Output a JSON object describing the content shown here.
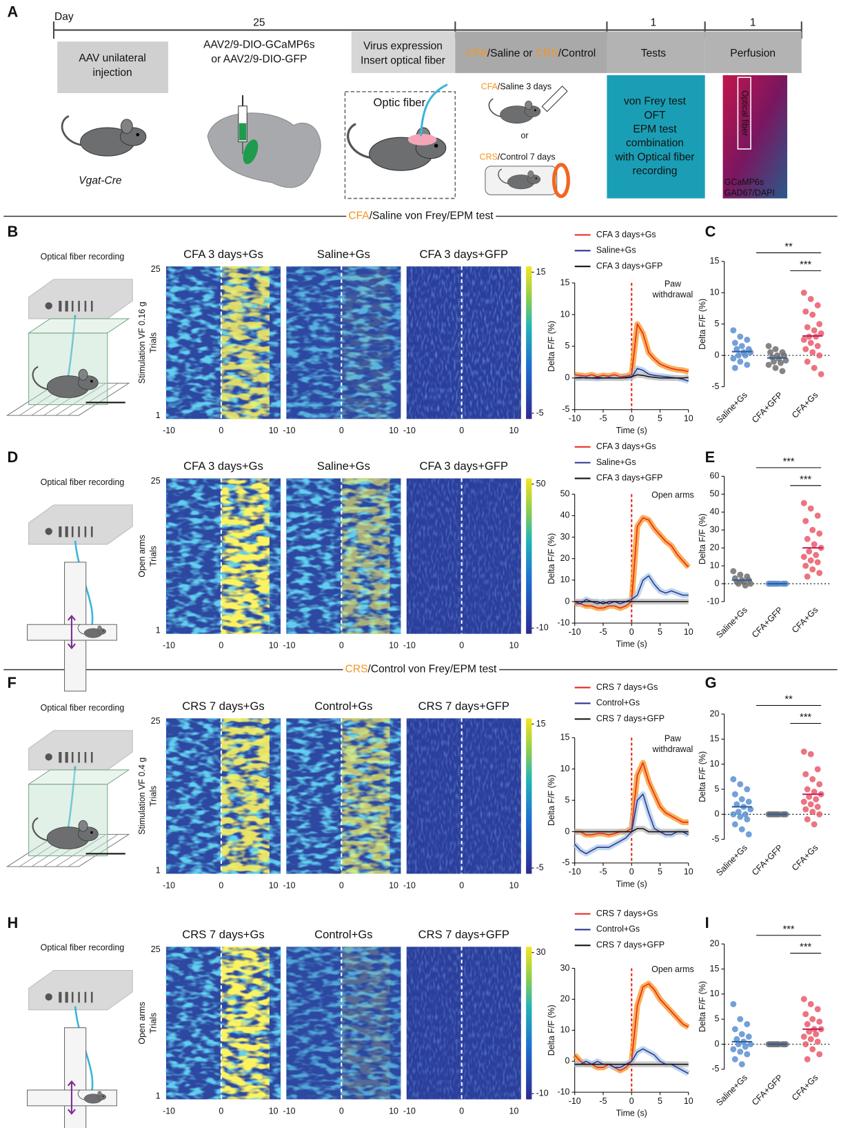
{
  "panel_a": {
    "label": "A",
    "axis_label": "Day",
    "durations": [
      25,
      1,
      1
    ],
    "injection": [
      "AAV unilateral",
      "injection"
    ],
    "virus": [
      "AAV2/9-DIO-GCaMP6s",
      "or AAV2/9-DIO-GFP"
    ],
    "expression": [
      "Virus expression",
      "Insert optical fiber"
    ],
    "model": [
      {
        "text": "CFA",
        "color": "#f7941d"
      },
      {
        "text": "/Saline or "
      },
      {
        "text": "CRS",
        "color": "#f7941d"
      },
      {
        "text": "/Control"
      }
    ],
    "tests": "Tests",
    "perfusion": "Perfusion",
    "mouse_line": "Vgat-Cre",
    "optic_fiber": "Optic fiber",
    "cfa_treatment": [
      {
        "text": "CFA",
        "color": "#f7941d"
      },
      {
        "text": "/Saline  3 days"
      }
    ],
    "or": "or",
    "crs_treatment": [
      {
        "text": "CRS",
        "color": "#f7941d"
      },
      {
        "text": "/Control  7 days"
      }
    ],
    "test_list": [
      "von Frey test",
      "OFT",
      "EPM test",
      "combination",
      "with Optical fiber",
      "recording"
    ],
    "image_labels": {
      "fiber": "Optical fiber",
      "stain1": "GCaMP6s",
      "stain2": "GAD67/DAPI"
    }
  },
  "sections": [
    [
      {
        "text": "CFA",
        "color": "#f7941d"
      },
      {
        "text": "/Saline von Frey/EPM test"
      }
    ],
    [
      {
        "text": "CRS",
        "color": "#f7941d"
      },
      {
        "text": "/Control von Frey/EPM test"
      }
    ]
  ],
  "rows": [
    {
      "label": "B",
      "recording": "Optical fiber recording",
      "ylabel": "Stimulation VF 0.16 g",
      "trials_label": "Trials",
      "trial_ticks": [
        1,
        25
      ],
      "heatmaps": [
        {
          "title": "CFA 3 days+Gs",
          "color": "#f7941d"
        },
        {
          "title": "Saline+Gs",
          "color": "#2e3192"
        },
        {
          "title": "CFA 3 days+GFP",
          "color": "#111111"
        }
      ],
      "heat_xticks": [
        -10,
        0,
        10
      ],
      "event_x": 0,
      "colorbar_ticks": [
        -5,
        15
      ]
    },
    {
      "label": "D",
      "recording": "Optical fiber recording",
      "ylabel": "Open arms",
      "trials_label": "Trials",
      "trial_ticks": [
        1,
        25
      ],
      "heatmaps": [
        {
          "title": "CFA 3 days+Gs",
          "color": "#f7941d"
        },
        {
          "title": "Saline+Gs",
          "color": "#2e3192"
        },
        {
          "title": "CFA 3 days+GFP",
          "color": "#111111"
        }
      ],
      "heat_xticks": [
        -10,
        0,
        10
      ],
      "event_x": 0,
      "colorbar_ticks": [
        -10,
        50
      ]
    },
    {
      "label": "F",
      "recording": "Optical fiber recording",
      "ylabel": "Stimulation VF 0.4 g",
      "trials_label": "Trials",
      "trial_ticks": [
        1,
        25
      ],
      "heatmaps": [
        {
          "title": "CRS 7 days+Gs",
          "color": "#f7941d"
        },
        {
          "title": "Control+Gs",
          "color": "#2e3192"
        },
        {
          "title": "CRS 7 days+GFP",
          "color": "#111111"
        }
      ],
      "heat_xticks": [
        -10,
        0,
        10
      ],
      "event_x": 0,
      "colorbar_ticks": [
        -5,
        15
      ]
    },
    {
      "label": "H",
      "recording": "Optical fiber recording",
      "ylabel": "Open arms",
      "trials_label": "Trials",
      "trial_ticks": [
        1,
        25
      ],
      "heatmaps": [
        {
          "title": "CRS 7 days+Gs",
          "color": "#f7941d"
        },
        {
          "title": "Control+Gs",
          "color": "#2e3192"
        },
        {
          "title": "CRS 7 days+GFP",
          "color": "#111111"
        }
      ],
      "heat_xticks": [
        -10,
        0,
        10
      ],
      "event_x": 0,
      "colorbar_ticks": [
        -10,
        30
      ]
    }
  ],
  "chart_data": [
    {
      "type": "line",
      "x": [
        -10,
        -9,
        -8,
        -7,
        -6,
        -5,
        -4,
        -3,
        -2,
        -1,
        0,
        1,
        2,
        3,
        4,
        5,
        6,
        7,
        8,
        9,
        10
      ],
      "xlim": [
        -10,
        10
      ],
      "xticks": [
        -10,
        -5,
        0,
        5,
        10
      ],
      "ylim": [
        -5,
        15
      ],
      "yticks": [
        -5,
        0,
        5,
        10,
        15
      ],
      "xlabel": "Time (s)",
      "ylabel": "Delta F/F (%)",
      "event_x": 0,
      "event_color": "#e8251f",
      "annotation": [
        "Paw",
        "withdrawal"
      ],
      "series": [
        {
          "name": "CFA 3 days+Gs",
          "color": "#e8251f",
          "band_color": "#f7941d",
          "values": [
            0.5,
            0.4,
            0.3,
            0.5,
            0.2,
            0.4,
            0.3,
            0.5,
            0.2,
            0.3,
            0.5,
            8.5,
            7,
            4,
            3,
            2.2,
            1.8,
            1.5,
            1.3,
            1.2,
            1
          ]
        },
        {
          "name": "Saline+Gs",
          "color": "#2e3192",
          "band_color": "#a9cbe8",
          "values": [
            0,
            0,
            0.1,
            0,
            -0.1,
            0,
            0.1,
            0,
            0,
            0,
            0.1,
            1.5,
            1.2,
            0.6,
            0.4,
            0.3,
            0.2,
            0.1,
            0,
            -0.2,
            -0.5
          ]
        },
        {
          "name": "CFA 3 days+GFP",
          "color": "#111111",
          "band_color": "#bbbbbb",
          "values": [
            0,
            0.1,
            0,
            0,
            0.1,
            0,
            0,
            0,
            0,
            0.1,
            0.2,
            0.5,
            0.4,
            0.2,
            0.1,
            0,
            0,
            0,
            0,
            0,
            0.1
          ]
        }
      ]
    },
    {
      "type": "scatter",
      "label": "C",
      "ylabel": "Delta F/F (%)",
      "categories": [
        "Saline+Gs",
        "CFA+GFP",
        "CFA+Gs"
      ],
      "colors": [
        "#5b8fd1",
        "#707070",
        "#ea5a6a"
      ],
      "ylim": [
        -5,
        15
      ],
      "yticks": [
        -5,
        0,
        5,
        10,
        15
      ],
      "significance": [
        "**",
        "***"
      ],
      "means": [
        0.6,
        -0.4,
        3.1
      ],
      "values": [
        [
          4,
          3,
          2.5,
          2,
          1.5,
          1,
          1,
          0.5,
          0.5,
          0,
          0,
          -0.5,
          -1,
          -1.5,
          -2
        ],
        [
          1.5,
          1,
          0.5,
          0.5,
          0,
          0,
          -0.3,
          -0.5,
          -0.8,
          -1,
          -1.2,
          -1.5,
          -2,
          -2.5
        ],
        [
          10,
          9,
          8,
          7,
          6.5,
          5,
          4.5,
          4,
          3.5,
          3,
          3,
          2.5,
          2,
          1.5,
          1,
          0.5,
          0,
          -1,
          -2,
          -3
        ]
      ]
    },
    {
      "type": "line",
      "x": [
        -10,
        -9,
        -8,
        -7,
        -6,
        -5,
        -4,
        -3,
        -2,
        -1,
        0,
        1,
        2,
        3,
        4,
        5,
        6,
        7,
        8,
        9,
        10
      ],
      "xlim": [
        -10,
        10
      ],
      "xticks": [
        -10,
        -5,
        0,
        5,
        10
      ],
      "ylim": [
        -10,
        50
      ],
      "yticks": [
        -10,
        0,
        10,
        20,
        30,
        40,
        50
      ],
      "xlabel": "Time (s)",
      "ylabel": "Delta F/F (%)",
      "event_x": 0,
      "event_color": "#e8251f",
      "annotation": [
        "Open arms"
      ],
      "series": [
        {
          "name": "CFA 3 days+Gs",
          "color": "#e8251f",
          "band_color": "#f7941d",
          "values": [
            -1,
            -1,
            -2,
            -2,
            -3,
            -3,
            -2,
            -2,
            -3,
            -2,
            0,
            35,
            39,
            38,
            34,
            31,
            28,
            26,
            22,
            19,
            16
          ]
        },
        {
          "name": "Saline+Gs",
          "color": "#2e3192",
          "band_color": "#a9cbe8",
          "values": [
            0,
            -1,
            1,
            0,
            -1,
            0,
            -1,
            0,
            -1,
            0,
            1,
            3,
            10,
            12,
            8,
            5,
            4,
            5,
            4,
            3,
            3
          ]
        },
        {
          "name": "CFA 3 days+GFP",
          "color": "#111111",
          "band_color": "#bbbbbb",
          "values": [
            0,
            0,
            0,
            0,
            0,
            -1,
            0,
            0,
            0,
            0,
            0,
            0,
            0,
            0,
            0,
            0,
            0,
            0,
            0,
            0,
            0
          ]
        }
      ]
    },
    {
      "type": "scatter",
      "label": "E",
      "ylabel": "Delta F/F (%)",
      "categories": [
        "Saline+Gs",
        "CFA+GFP",
        "CFA+Gs"
      ],
      "colors": [
        "#707070",
        "#5b8fd1",
        "#ea5a6a"
      ],
      "ylim": [
        -10,
        60
      ],
      "yticks": [
        -10,
        0,
        10,
        20,
        30,
        40,
        50,
        60
      ],
      "significance": [
        "***",
        "***"
      ],
      "means": [
        2,
        0,
        20
      ],
      "values": [
        [
          7,
          5,
          4,
          3,
          2,
          2,
          1,
          1,
          0,
          0,
          -1
        ],
        [
          0,
          0,
          0,
          0,
          0,
          0,
          0,
          0,
          0,
          0
        ],
        [
          45,
          42,
          38,
          35,
          30,
          28,
          25,
          22,
          20,
          18,
          16,
          15,
          13,
          12,
          10,
          8,
          6,
          4
        ]
      ]
    },
    {
      "type": "line",
      "x": [
        -10,
        -9,
        -8,
        -7,
        -6,
        -5,
        -4,
        -3,
        -2,
        -1,
        0,
        1,
        2,
        3,
        4,
        5,
        6,
        7,
        8,
        9,
        10
      ],
      "xlim": [
        -10,
        10
      ],
      "xticks": [
        -10,
        -5,
        0,
        5,
        10
      ],
      "ylim": [
        -5,
        15
      ],
      "yticks": [
        -5,
        0,
        5,
        10,
        15
      ],
      "xlabel": "Time (s)",
      "ylabel": "Delta F/F (%)",
      "event_x": 0,
      "event_color": "#e8251f",
      "annotation": [
        "Paw",
        "withdrawal"
      ],
      "series": [
        {
          "name": "CRS 7 days+Gs",
          "color": "#e8251f",
          "band_color": "#f7941d",
          "values": [
            0,
            0,
            -0.5,
            -0.5,
            -0.3,
            -0.3,
            -0.5,
            -0.3,
            0,
            0,
            0.5,
            9,
            11,
            8,
            6,
            4,
            3,
            2.5,
            2,
            1.5,
            1.5
          ]
        },
        {
          "name": "Control+Gs",
          "color": "#2e3192",
          "band_color": "#a9cbe8",
          "values": [
            -2,
            -3,
            -3.5,
            -3,
            -2.5,
            -2.5,
            -2.5,
            -2,
            -1.5,
            -1,
            0,
            5,
            6,
            3,
            0.5,
            0,
            -0.5,
            -0.5,
            0,
            0,
            -0.5
          ]
        },
        {
          "name": "CRS 7 days+GFP",
          "color": "#111111",
          "band_color": "#bbbbbb",
          "values": [
            0,
            0,
            0,
            0,
            0,
            0,
            0,
            0,
            0,
            0,
            0,
            0.5,
            0.5,
            0,
            0,
            0,
            0,
            0,
            0,
            0,
            0
          ]
        }
      ]
    },
    {
      "type": "scatter",
      "label": "G",
      "ylabel": "Delta F/F (%)",
      "categories": [
        "Saline+Gs",
        "CFA+GFP",
        "CFA+Gs"
      ],
      "colors": [
        "#5b8fd1",
        "#707070",
        "#ea5a6a"
      ],
      "ylim": [
        -5,
        20
      ],
      "yticks": [
        -5,
        0,
        5,
        10,
        15,
        20
      ],
      "significance": [
        "**",
        "***"
      ],
      "means": [
        1.5,
        0,
        4
      ],
      "values": [
        [
          7,
          6,
          5,
          4,
          3,
          2.5,
          2,
          1.5,
          1,
          0.5,
          0,
          0,
          -0.5,
          -1,
          -2,
          -3,
          -4
        ],
        [
          0,
          0,
          0,
          0,
          0,
          0,
          0,
          0,
          0,
          0
        ],
        [
          12.5,
          12,
          9,
          8,
          7,
          6,
          5,
          4.5,
          4,
          3.5,
          3,
          2.5,
          2,
          1.5,
          1,
          0.5,
          0,
          -1,
          -2
        ]
      ]
    },
    {
      "type": "line",
      "x": [
        -10,
        -9,
        -8,
        -7,
        -6,
        -5,
        -4,
        -3,
        -2,
        -1,
        0,
        1,
        2,
        3,
        4,
        5,
        6,
        7,
        8,
        9,
        10
      ],
      "xlim": [
        -10,
        10
      ],
      "xticks": [
        -10,
        -5,
        0,
        5,
        10
      ],
      "ylim": [
        -10,
        30
      ],
      "yticks": [
        -10,
        0,
        10,
        20,
        30
      ],
      "xlabel": "Time (s)",
      "ylabel": "Delta F/F (%)",
      "event_x": 0,
      "event_color": "#e8251f",
      "annotation": [
        "Open arms"
      ],
      "series": [
        {
          "name": "CRS 7 days+Gs",
          "color": "#e8251f",
          "band_color": "#f7941d",
          "values": [
            2,
            0,
            -1,
            -1,
            -2,
            -2,
            -1,
            -2,
            -3,
            -2,
            0,
            18,
            24,
            25,
            23,
            20,
            18,
            16,
            14,
            12,
            11
          ]
        },
        {
          "name": "Control+Gs",
          "color": "#2e3192",
          "band_color": "#a9cbe8",
          "values": [
            -1,
            -1,
            0,
            -1,
            0,
            -1,
            -1,
            -2,
            -2,
            -1,
            0,
            3,
            4,
            3,
            2,
            0,
            -1,
            -1,
            -2,
            -3,
            -4
          ]
        },
        {
          "name": "CRS 7 days+GFP",
          "color": "#111111",
          "band_color": "#bbbbbb",
          "values": [
            -1,
            -1,
            -1,
            -1,
            -1,
            -1,
            -1,
            -1,
            -1,
            -1,
            -1,
            -1,
            -1,
            -1,
            -1,
            -1,
            -1,
            -1,
            -1,
            -1,
            -1
          ]
        }
      ]
    },
    {
      "type": "scatter",
      "label": "I",
      "ylabel": "Delta F/F (%)",
      "categories": [
        "Saline+Gs",
        "CFA+GFP",
        "CFA+Gs"
      ],
      "colors": [
        "#5b8fd1",
        "#707070",
        "#ea5a6a"
      ],
      "ylim": [
        -5,
        20
      ],
      "yticks": [
        -5,
        0,
        5,
        10,
        15,
        20
      ],
      "significance": [
        "***",
        "***"
      ],
      "means": [
        0.5,
        0,
        3
      ],
      "values": [
        [
          8,
          5,
          4,
          3,
          2,
          1.5,
          1,
          0.5,
          0,
          0,
          -0.5,
          -1,
          -1.5,
          -2,
          -3,
          -4
        ],
        [
          0,
          0,
          0,
          0,
          0,
          0,
          0,
          0,
          0,
          0
        ],
        [
          9,
          8,
          7,
          6,
          5,
          4.5,
          4,
          3,
          3,
          2.5,
          2,
          1.5,
          1,
          0.5,
          0,
          -1,
          -2,
          -3
        ]
      ]
    }
  ]
}
